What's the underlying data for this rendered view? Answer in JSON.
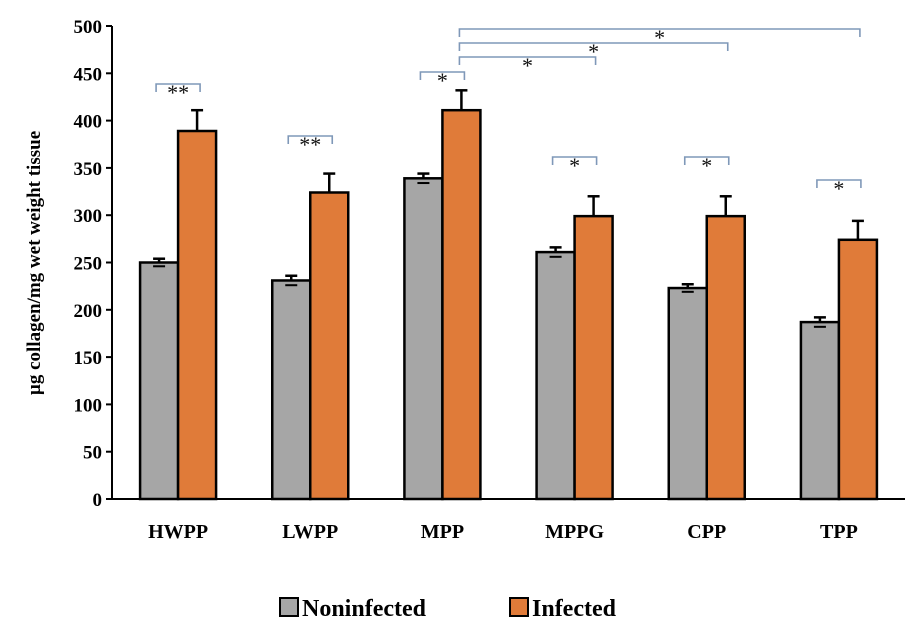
{
  "chart_data": {
    "type": "bar",
    "ylabel": "µg collagen/mg wet weight tissue",
    "ylim": [
      0,
      500
    ],
    "yticks": [
      0,
      50,
      100,
      150,
      200,
      250,
      300,
      350,
      400,
      450,
      500
    ],
    "categories": [
      "HWPP",
      "LWPP",
      "MPP",
      "MPPG",
      "CPP",
      "TPP"
    ],
    "series": [
      {
        "name": "Noninfected",
        "color": "#a6a6a6",
        "values": [
          250,
          231,
          339,
          261,
          223,
          187
        ],
        "errors": [
          4,
          5,
          5,
          5,
          4,
          5
        ]
      },
      {
        "name": "Infected",
        "color": "#e07b39",
        "values": [
          389,
          324,
          411,
          299,
          299,
          274
        ],
        "errors": [
          22,
          20,
          21,
          21,
          21,
          20
        ]
      }
    ],
    "legend": {
      "position": "bottom",
      "labels": [
        "Noninfected",
        "Infected"
      ]
    },
    "grid": false,
    "significance": [
      {
        "from": [
          0,
          0
        ],
        "to": [
          0,
          1
        ],
        "label": "**"
      },
      {
        "from": [
          1,
          0
        ],
        "to": [
          1,
          1
        ],
        "label": "**"
      },
      {
        "from": [
          2,
          0
        ],
        "to": [
          2,
          1
        ],
        "label": "*"
      },
      {
        "from": [
          3,
          0
        ],
        "to": [
          3,
          1
        ],
        "label": "*"
      },
      {
        "from": [
          4,
          0
        ],
        "to": [
          4,
          1
        ],
        "label": "*"
      },
      {
        "from": [
          5,
          0
        ],
        "to": [
          5,
          1
        ],
        "label": "*"
      },
      {
        "from": [
          2,
          1
        ],
        "to": [
          3,
          1
        ],
        "label": "*"
      },
      {
        "from": [
          2,
          1
        ],
        "to": [
          4,
          1
        ],
        "label": "*"
      },
      {
        "from": [
          2,
          1
        ],
        "to": [
          5,
          1
        ],
        "label": "*"
      }
    ]
  }
}
